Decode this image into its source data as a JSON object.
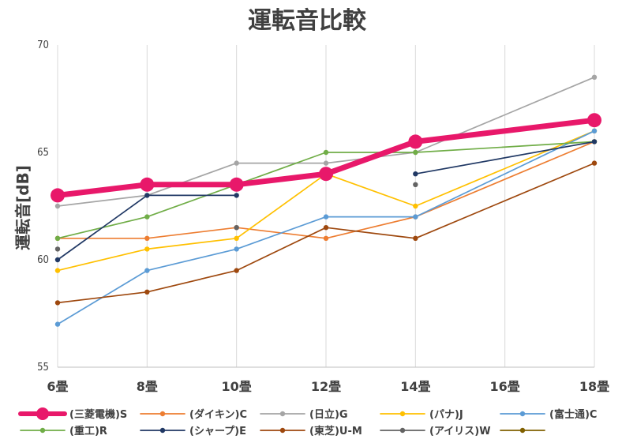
{
  "chart_data": {
    "type": "line",
    "title": "運転音比較",
    "ylabel": "運転音[dB]",
    "xlabel": "",
    "categories": [
      "6畳",
      "8畳",
      "10畳",
      "12畳",
      "14畳",
      "16畳",
      "18畳"
    ],
    "ylim": [
      55,
      70
    ],
    "yticks": [
      55,
      60,
      65,
      70
    ],
    "grid": "vertical",
    "legend_position": "bottom",
    "series": [
      {
        "name": "(三菱電機)S",
        "color": "#E8186A",
        "emphasis": true,
        "values": [
          63,
          63.5,
          63.5,
          64,
          65.5,
          null,
          66.5
        ]
      },
      {
        "name": "(ダイキン)C",
        "color": "#ED7D31",
        "values": [
          61,
          61,
          61.5,
          61,
          62,
          null,
          65.5
        ]
      },
      {
        "name": "(日立)G",
        "color": "#A5A5A5",
        "values": [
          62.5,
          63,
          64.5,
          64.5,
          65,
          null,
          68.5
        ]
      },
      {
        "name": "(パナ)J",
        "color": "#FFC000",
        "values": [
          59.5,
          60.5,
          61,
          64,
          62.5,
          null,
          66
        ]
      },
      {
        "name": "(富士通)C",
        "color": "#5B9BD5",
        "values": [
          57,
          59.5,
          60.5,
          62,
          62,
          null,
          66
        ]
      },
      {
        "name": "(重工)R",
        "color": "#70AD47",
        "values": [
          61,
          62,
          63.5,
          65,
          65,
          null,
          65.5
        ]
      },
      {
        "name": "(シャープ)E",
        "color": "#203864",
        "values": [
          60,
          63,
          63,
          null,
          64,
          null,
          65.5
        ]
      },
      {
        "name": "(東芝)U-M",
        "color": "#9E480E",
        "values": [
          58,
          58.5,
          59.5,
          61.5,
          61,
          null,
          64.5
        ]
      },
      {
        "name": "(アイリス)W",
        "color": "#636363",
        "values": [
          60.5,
          null,
          61.5,
          null,
          63.5,
          null,
          null
        ]
      },
      {
        "name": "",
        "color": "#806000",
        "values": [
          null,
          null,
          null,
          null,
          null,
          null,
          null
        ]
      }
    ]
  }
}
